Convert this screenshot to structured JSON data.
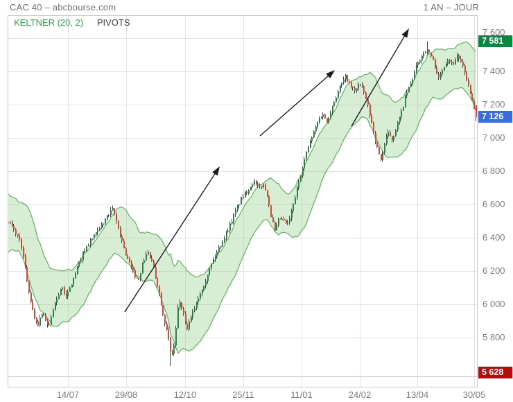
{
  "header": {
    "title": "CAC 40 – abcbourse.com",
    "timeframe": "1 AN – JOUR"
  },
  "legend": {
    "keltner": "KELTNER (20, 2)",
    "pivots": "PIVOTS",
    "keltner_color": "#38a04a",
    "pivots_color": "#3d3d3d"
  },
  "price_badges": [
    {
      "role": "high",
      "label": "7 581",
      "price": 7581,
      "color": "#008a3d"
    },
    {
      "role": "last",
      "label": "7 126",
      "price": 7126,
      "color": "#3a6be0"
    },
    {
      "role": "low",
      "label": "5 628",
      "price": 5628,
      "color": "#bb0a0a"
    }
  ],
  "chart_data": {
    "type": "candlestick",
    "instrument": "CAC 40",
    "period": "1 year, daily",
    "overlay": "Keltner Channel (20, 2)",
    "candle_count": 252,
    "y_axis": {
      "min": 5566.7,
      "max": 7737.5,
      "ticks": [
        {
          "label": "7 600",
          "price": 7600
        },
        {
          "label": "7 400",
          "price": 7400
        },
        {
          "label": "7 200",
          "price": 7200
        },
        {
          "label": "7 000",
          "price": 7000
        },
        {
          "label": "6 800",
          "price": 6800
        },
        {
          "label": "6 600",
          "price": 6600
        },
        {
          "label": "6 400",
          "price": 6400
        },
        {
          "label": "6 200",
          "price": 6200
        },
        {
          "label": "6 000",
          "price": 6000
        },
        {
          "label": "5 800",
          "price": 5800
        }
      ]
    },
    "x_axis": {
      "ticks": [
        {
          "label": "14/07",
          "f": 0.1285
        },
        {
          "label": "29/08",
          "f": 0.2526
        },
        {
          "label": "12/10",
          "f": 0.3781
        },
        {
          "label": "25/11",
          "f": 0.5022
        },
        {
          "label": "11/01",
          "f": 0.6263
        },
        {
          "label": "24/02",
          "f": 0.7504
        },
        {
          "label": "13/04",
          "f": 0.873
        },
        {
          "label": "30/05",
          "f": 0.9941
        }
      ]
    },
    "extremes": {
      "high": {
        "f": 0.894,
        "price": 7581
      },
      "low": {
        "f": 0.347,
        "price": 5628
      },
      "last": 7126
    },
    "close_keypoints": [
      [
        0.003,
        6500
      ],
      [
        0.013,
        6450
      ],
      [
        0.028,
        6380
      ],
      [
        0.043,
        6120
      ],
      [
        0.055,
        5940
      ],
      [
        0.065,
        5880
      ],
      [
        0.075,
        5960
      ],
      [
        0.087,
        5850
      ],
      [
        0.099,
        5990
      ],
      [
        0.114,
        6100
      ],
      [
        0.127,
        6050
      ],
      [
        0.143,
        6170
      ],
      [
        0.161,
        6310
      ],
      [
        0.179,
        6390
      ],
      [
        0.194,
        6440
      ],
      [
        0.208,
        6510
      ],
      [
        0.225,
        6570
      ],
      [
        0.238,
        6440
      ],
      [
        0.253,
        6290
      ],
      [
        0.267,
        6200
      ],
      [
        0.278,
        6140
      ],
      [
        0.29,
        6260
      ],
      [
        0.298,
        6320
      ],
      [
        0.309,
        6240
      ],
      [
        0.321,
        6100
      ],
      [
        0.332,
        5940
      ],
      [
        0.343,
        5790
      ],
      [
        0.349,
        5680
      ],
      [
        0.356,
        5760
      ],
      [
        0.365,
        6030
      ],
      [
        0.374,
        5950
      ],
      [
        0.381,
        5840
      ],
      [
        0.39,
        5910
      ],
      [
        0.402,
        6010
      ],
      [
        0.414,
        6090
      ],
      [
        0.425,
        6170
      ],
      [
        0.437,
        6260
      ],
      [
        0.449,
        6330
      ],
      [
        0.461,
        6400
      ],
      [
        0.473,
        6470
      ],
      [
        0.486,
        6560
      ],
      [
        0.499,
        6640
      ],
      [
        0.513,
        6690
      ],
      [
        0.524,
        6740
      ],
      [
        0.535,
        6700
      ],
      [
        0.545,
        6720
      ],
      [
        0.554,
        6660
      ],
      [
        0.561,
        6540
      ],
      [
        0.57,
        6430
      ],
      [
        0.579,
        6520
      ],
      [
        0.588,
        6500
      ],
      [
        0.597,
        6480
      ],
      [
        0.606,
        6560
      ],
      [
        0.616,
        6680
      ],
      [
        0.628,
        6820
      ],
      [
        0.64,
        6940
      ],
      [
        0.651,
        7020
      ],
      [
        0.663,
        7110
      ],
      [
        0.672,
        7150
      ],
      [
        0.68,
        7090
      ],
      [
        0.688,
        7160
      ],
      [
        0.699,
        7240
      ],
      [
        0.709,
        7310
      ],
      [
        0.721,
        7370
      ],
      [
        0.731,
        7310
      ],
      [
        0.74,
        7280
      ],
      [
        0.749,
        7330
      ],
      [
        0.758,
        7290
      ],
      [
        0.768,
        7190
      ],
      [
        0.778,
        7060
      ],
      [
        0.789,
        6920
      ],
      [
        0.796,
        6870
      ],
      [
        0.805,
        6980
      ],
      [
        0.812,
        7030
      ],
      [
        0.82,
        6990
      ],
      [
        0.829,
        7070
      ],
      [
        0.839,
        7150
      ],
      [
        0.849,
        7260
      ],
      [
        0.86,
        7330
      ],
      [
        0.87,
        7420
      ],
      [
        0.88,
        7480
      ],
      [
        0.891,
        7530
      ],
      [
        0.9,
        7510
      ],
      [
        0.91,
        7440
      ],
      [
        0.919,
        7350
      ],
      [
        0.929,
        7430
      ],
      [
        0.939,
        7480
      ],
      [
        0.948,
        7440
      ],
      [
        0.959,
        7500
      ],
      [
        0.968,
        7440
      ],
      [
        0.977,
        7370
      ],
      [
        0.985,
        7280
      ],
      [
        0.993,
        7180
      ],
      [
        1.0,
        7126
      ]
    ],
    "arrows": [
      {
        "f1": 0.2496,
        "p1": 5954,
        "f2": 0.452,
        "p2": 6829
      },
      {
        "f1": 0.5377,
        "p1": 7012,
        "f2": 0.6972,
        "p2": 7408
      },
      {
        "f1": 0.7326,
        "p1": 7071,
        "f2": 0.8552,
        "p2": 7658
      }
    ],
    "colors": {
      "up": "#2e8049",
      "down": "#cc4c3b",
      "wick": "#3f3f3f",
      "band_fill": "rgba(124,196,112,0.30)",
      "band_line": "#60b260",
      "grid": "#e4e4e4",
      "border": "#c8c8c8",
      "arrow": "#1a1a1a"
    }
  }
}
